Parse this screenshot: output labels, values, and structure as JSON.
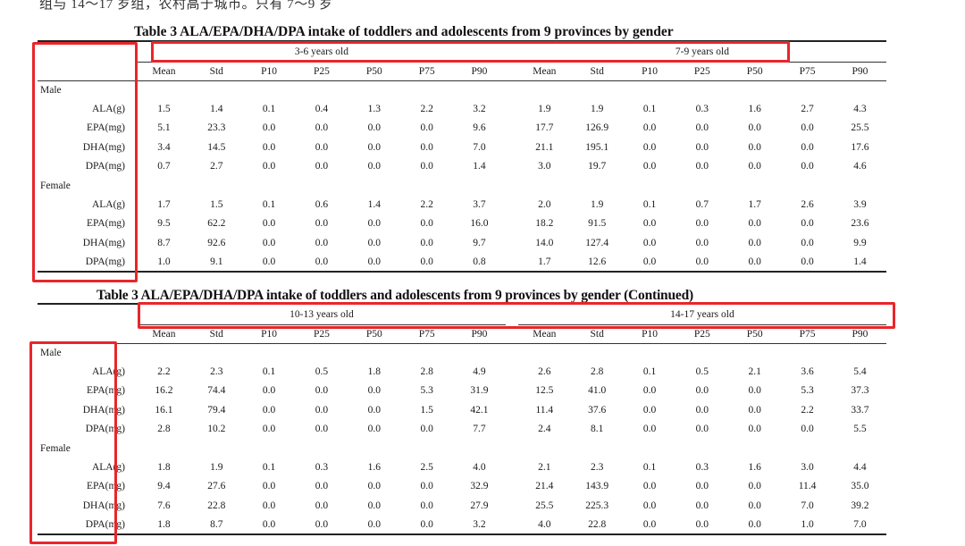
{
  "top_text": "组与 14～17 岁组，农村高于城市。只有 7～9 岁",
  "table1": {
    "caption": "Table 3   ALA/EPA/DHA/DPA intake of toddlers and adolescents from 9 provinces by gender",
    "age_groups": [
      "3-6 years old",
      "7-9 years old"
    ],
    "columns": [
      "Mean",
      "Std",
      "P10",
      "P25",
      "P50",
      "P75",
      "P90"
    ],
    "sections": [
      {
        "label": "Male",
        "rows": [
          {
            "label": "ALA(g)",
            "values": [
              "1.5",
              "1.4",
              "0.1",
              "0.4",
              "1.3",
              "2.2",
              "3.2",
              "1.9",
              "1.9",
              "0.1",
              "0.3",
              "1.6",
              "2.7",
              "4.3"
            ]
          },
          {
            "label": "EPA(mg)",
            "values": [
              "5.1",
              "23.3",
              "0.0",
              "0.0",
              "0.0",
              "0.0",
              "9.6",
              "17.7",
              "126.9",
              "0.0",
              "0.0",
              "0.0",
              "0.0",
              "25.5"
            ]
          },
          {
            "label": "DHA(mg)",
            "values": [
              "3.4",
              "14.5",
              "0.0",
              "0.0",
              "0.0",
              "0.0",
              "7.0",
              "21.1",
              "195.1",
              "0.0",
              "0.0",
              "0.0",
              "0.0",
              "17.6"
            ]
          },
          {
            "label": "DPA(mg)",
            "values": [
              "0.7",
              "2.7",
              "0.0",
              "0.0",
              "0.0",
              "0.0",
              "1.4",
              "3.0",
              "19.7",
              "0.0",
              "0.0",
              "0.0",
              "0.0",
              "4.6"
            ]
          }
        ]
      },
      {
        "label": "Female",
        "rows": [
          {
            "label": "ALA(g)",
            "values": [
              "1.7",
              "1.5",
              "0.1",
              "0.6",
              "1.4",
              "2.2",
              "3.7",
              "2.0",
              "1.9",
              "0.1",
              "0.7",
              "1.7",
              "2.6",
              "3.9"
            ]
          },
          {
            "label": "EPA(mg)",
            "values": [
              "9.5",
              "62.2",
              "0.0",
              "0.0",
              "0.0",
              "0.0",
              "16.0",
              "18.2",
              "91.5",
              "0.0",
              "0.0",
              "0.0",
              "0.0",
              "23.6"
            ]
          },
          {
            "label": "DHA(mg)",
            "values": [
              "8.7",
              "92.6",
              "0.0",
              "0.0",
              "0.0",
              "0.0",
              "9.7",
              "14.0",
              "127.4",
              "0.0",
              "0.0",
              "0.0",
              "0.0",
              "9.9"
            ]
          },
          {
            "label": "DPA(mg)",
            "values": [
              "1.0",
              "9.1",
              "0.0",
              "0.0",
              "0.0",
              "0.0",
              "0.8",
              "1.7",
              "12.6",
              "0.0",
              "0.0",
              "0.0",
              "0.0",
              "1.4"
            ]
          }
        ]
      }
    ]
  },
  "table2": {
    "caption": "Table 3 ALA/EPA/DHA/DPA intake of toddlers and adolescents from 9 provinces by gender (Continued)",
    "age_groups": [
      "10-13 years old",
      "14-17 years old"
    ],
    "columns": [
      "Mean",
      "Std",
      "P10",
      "P25",
      "P50",
      "P75",
      "P90"
    ],
    "sections": [
      {
        "label": "Male",
        "rows": [
          {
            "label": "ALA(g)",
            "values": [
              "2.2",
              "2.3",
              "0.1",
              "0.5",
              "1.8",
              "2.8",
              "4.9",
              "2.6",
              "2.8",
              "0.1",
              "0.5",
              "2.1",
              "3.6",
              "5.4"
            ]
          },
          {
            "label": "EPA(mg)",
            "values": [
              "16.2",
              "74.4",
              "0.0",
              "0.0",
              "0.0",
              "5.3",
              "31.9",
              "12.5",
              "41.0",
              "0.0",
              "0.0",
              "0.0",
              "5.3",
              "37.3"
            ]
          },
          {
            "label": "DHA(mg)",
            "values": [
              "16.1",
              "79.4",
              "0.0",
              "0.0",
              "0.0",
              "1.5",
              "42.1",
              "11.4",
              "37.6",
              "0.0",
              "0.0",
              "0.0",
              "2.2",
              "33.7"
            ]
          },
          {
            "label": "DPA(mg)",
            "values": [
              "2.8",
              "10.2",
              "0.0",
              "0.0",
              "0.0",
              "0.0",
              "7.7",
              "2.4",
              "8.1",
              "0.0",
              "0.0",
              "0.0",
              "0.0",
              "5.5"
            ]
          }
        ]
      },
      {
        "label": "Female",
        "rows": [
          {
            "label": "ALA(g)",
            "values": [
              "1.8",
              "1.9",
              "0.1",
              "0.3",
              "1.6",
              "2.5",
              "4.0",
              "2.1",
              "2.3",
              "0.1",
              "0.3",
              "1.6",
              "3.0",
              "4.4"
            ]
          },
          {
            "label": "EPA(mg)",
            "values": [
              "9.4",
              "27.6",
              "0.0",
              "0.0",
              "0.0",
              "0.0",
              "32.9",
              "21.4",
              "143.9",
              "0.0",
              "0.0",
              "0.0",
              "11.4",
              "35.0"
            ]
          },
          {
            "label": "DHA(mg)",
            "values": [
              "7.6",
              "22.8",
              "0.0",
              "0.0",
              "0.0",
              "0.0",
              "27.9",
              "25.5",
              "225.3",
              "0.0",
              "0.0",
              "0.0",
              "7.0",
              "39.2"
            ]
          },
          {
            "label": "DPA(mg)",
            "values": [
              "1.8",
              "8.7",
              "0.0",
              "0.0",
              "0.0",
              "0.0",
              "3.2",
              "4.0",
              "22.8",
              "0.0",
              "0.0",
              "0.0",
              "1.0",
              "7.0"
            ]
          }
        ]
      }
    ]
  },
  "highlight_color": "#e8262b"
}
